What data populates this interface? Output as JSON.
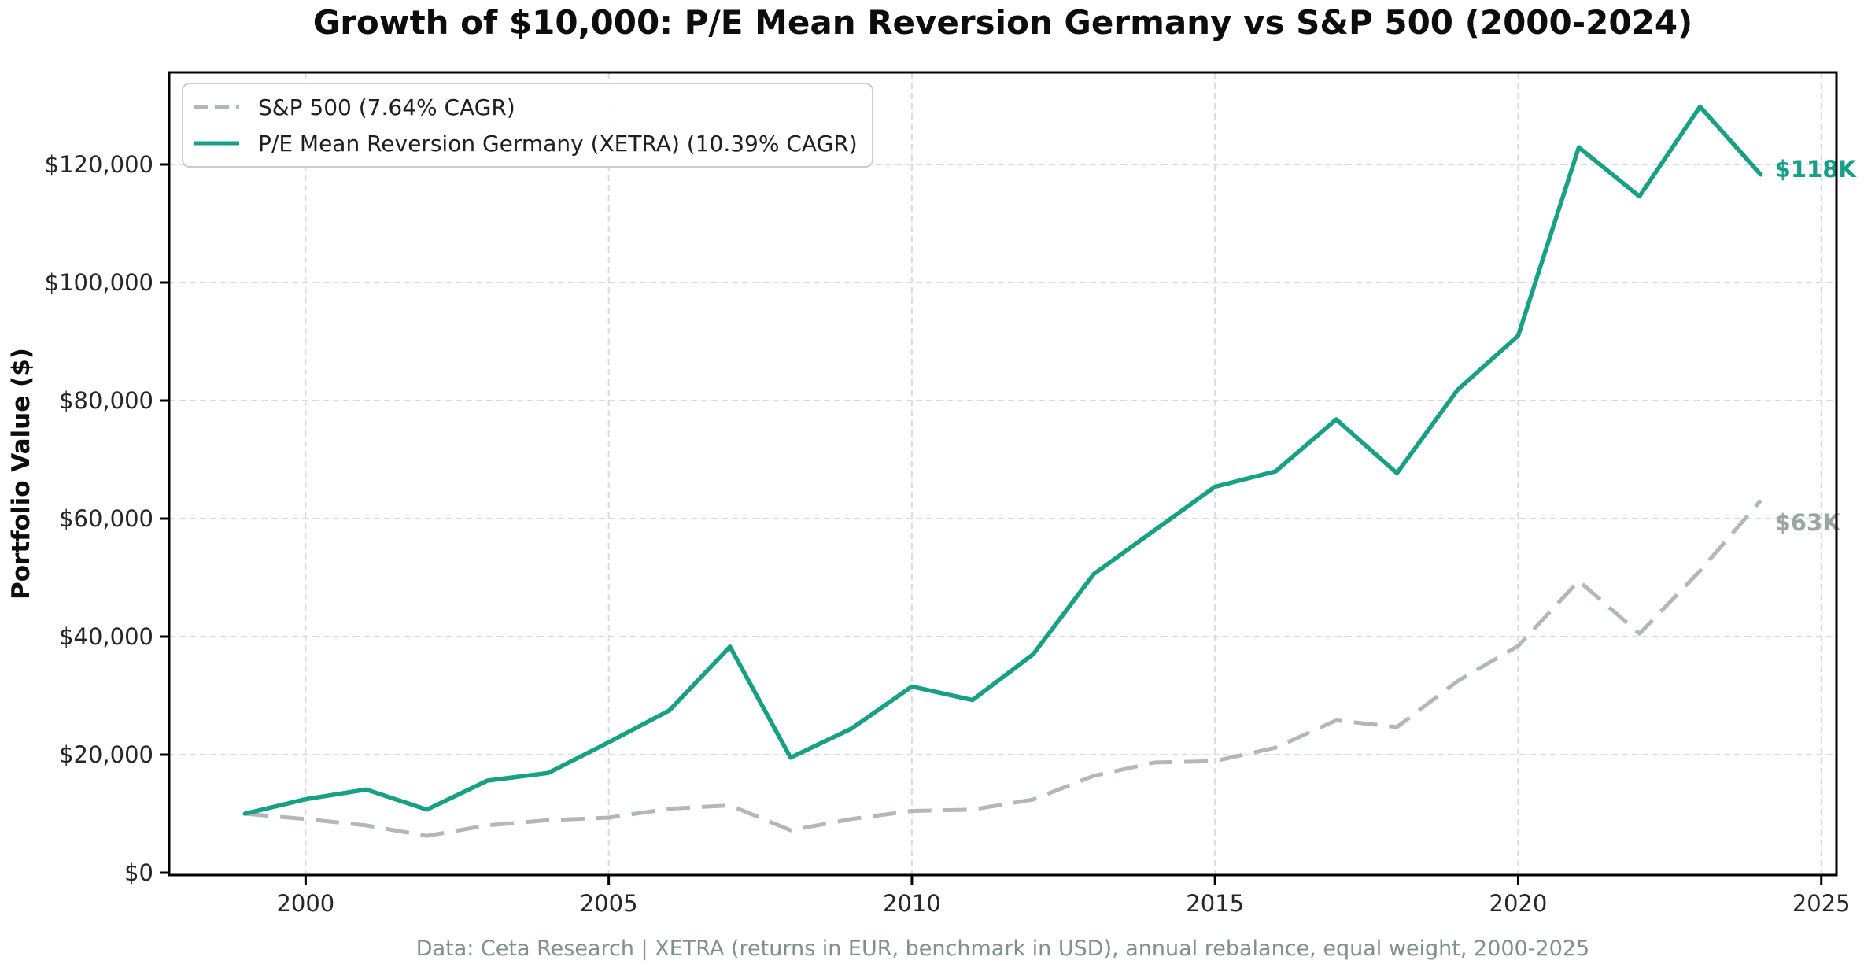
{
  "title": "Growth of $10,000: P/E Mean Reversion Germany vs S&P 500 (2000-2024)",
  "y_axis_label": "Portfolio Value ($)",
  "footer": "Data: Ceta Research | XETRA (returns in EUR, benchmark in USD), annual rebalance, equal weight, 2000-2025",
  "colors": {
    "strategy_teal": "#17a086",
    "benchmark_gray": "#b0b8b8",
    "benchmark_label_gray": "#9aa6a6",
    "grid": "#d9dcdb",
    "spine": "#000000",
    "tick_text": "#262626",
    "footer_text": "#7f918e"
  },
  "legend": {
    "items": [
      {
        "label": "S&P 500 (7.64% CAGR)",
        "color": "#b0b8b8",
        "style": "dashed"
      },
      {
        "label": "P/E Mean Reversion Germany (XETRA) (10.39% CAGR)",
        "color": "#17a086",
        "style": "solid"
      }
    ]
  },
  "chart_data": {
    "type": "line",
    "title": "Growth of $10,000: P/E Mean Reversion Germany vs S&P 500 (2000-2024)",
    "xlabel": "",
    "ylabel": "Portfolio Value ($)",
    "x": [
      1999,
      2000,
      2001,
      2002,
      2003,
      2004,
      2005,
      2006,
      2007,
      2008,
      2009,
      2010,
      2011,
      2012,
      2013,
      2014,
      2015,
      2016,
      2017,
      2018,
      2019,
      2020,
      2021,
      2022,
      2023,
      2024
    ],
    "series": [
      {
        "name": "S&P 500 (7.64% CAGR)",
        "style": "dashed",
        "color": "#b0b8b8",
        "end_label": "$63K",
        "end_label_color": "#9aa6a6",
        "values": [
          10000,
          9090,
          8010,
          6240,
          8030,
          8900,
          9340,
          10820,
          11410,
          7190,
          9090,
          10470,
          10690,
          12400,
          16410,
          18660,
          18920,
          21190,
          25810,
          24680,
          32450,
          38420,
          49450,
          40500,
          51150,
          63060
        ]
      },
      {
        "name": "P/E Mean Reversion Germany (XETRA) (10.39% CAGR)",
        "style": "solid",
        "color": "#17a086",
        "end_label": "$118K",
        "end_label_color": "#17a086",
        "values": [
          10000,
          12450,
          14100,
          10700,
          15600,
          16900,
          22100,
          27500,
          38300,
          19500,
          24400,
          31550,
          29250,
          37000,
          50600,
          58000,
          65400,
          68000,
          76800,
          67700,
          81800,
          91000,
          122900,
          114600,
          129800,
          118300
        ]
      }
    ],
    "x_ticks": [
      2000,
      2005,
      2010,
      2015,
      2020,
      2025
    ],
    "x_tick_labels": [
      "2000",
      "2005",
      "2010",
      "2015",
      "2020",
      "2025"
    ],
    "y_ticks": [
      0,
      20000,
      40000,
      60000,
      80000,
      100000,
      120000
    ],
    "y_tick_labels": [
      "$0",
      "$20,000",
      "$40,000",
      "$60,000",
      "$80,000",
      "$100,000",
      "$120,000"
    ],
    "xlim": [
      1997.75,
      2025.25
    ],
    "ylim": [
      -400,
      135600
    ],
    "grid": true,
    "legend_position": "upper-left"
  }
}
